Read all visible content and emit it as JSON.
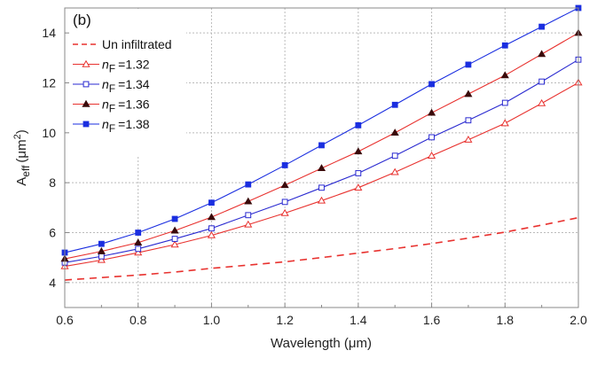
{
  "chart_data": {
    "type": "line",
    "panel_label": "(b)",
    "xlabel": "Wavelength (μm)",
    "ylabel": "A",
    "ylabel_sub": "eff",
    "ylabel_unit": "(μm",
    "ylabel_unit_sup": "2",
    "ylabel_unit_close": ")",
    "xlim": [
      0.6,
      2.0
    ],
    "ylim": [
      3,
      15
    ],
    "xticks": [
      "0.6",
      "0.8",
      "1.0",
      "1.2",
      "1.4",
      "1.6",
      "1.8",
      "2.0"
    ],
    "yticks": [
      "4",
      "6",
      "8",
      "10",
      "12",
      "14"
    ],
    "grid": true,
    "legend_position": "top-left",
    "x": [
      0.6,
      0.7,
      0.8,
      0.9,
      1.0,
      1.1,
      1.2,
      1.3,
      1.4,
      1.5,
      1.6,
      1.7,
      1.8,
      1.9,
      2.0
    ],
    "series": [
      {
        "name": "Un infiltrated",
        "legend_prefix": "",
        "legend_sub": "",
        "color": "#e8322f",
        "dash": true,
        "marker": "none",
        "values": [
          4.1,
          4.2,
          4.3,
          4.42,
          4.57,
          4.7,
          4.83,
          5.0,
          5.18,
          5.36,
          5.56,
          5.78,
          6.02,
          6.3,
          6.6
        ]
      },
      {
        "name": "=1.32",
        "legend_prefix": "n",
        "legend_sub": "F",
        "color": "#e8322f",
        "dash": false,
        "marker": "triangle-open",
        "values": [
          4.65,
          4.9,
          5.2,
          5.52,
          5.89,
          6.32,
          6.78,
          7.28,
          7.8,
          8.42,
          9.08,
          9.72,
          10.38,
          11.18,
          12.01
        ]
      },
      {
        "name": "=1.34",
        "legend_prefix": "n",
        "legend_sub": "F",
        "color": "#2a2ad0",
        "dash": false,
        "marker": "square-open",
        "values": [
          4.8,
          5.05,
          5.35,
          5.75,
          6.17,
          6.7,
          7.23,
          7.8,
          8.38,
          9.08,
          9.82,
          10.5,
          11.2,
          12.05,
          12.93
        ]
      },
      {
        "name": "=1.36",
        "legend_prefix": "n",
        "legend_sub": "F",
        "color": "#e8322f",
        "dash": false,
        "marker": "triangle-filled",
        "marker_color": "#3a0a0a",
        "values": [
          4.95,
          5.25,
          5.6,
          6.08,
          6.62,
          7.25,
          7.9,
          8.58,
          9.25,
          10.0,
          10.8,
          11.55,
          12.3,
          13.15,
          14.0
        ]
      },
      {
        "name": "=1.38",
        "legend_prefix": "n",
        "legend_sub": "F",
        "color": "#1a2ee0",
        "dash": false,
        "marker": "square-filled",
        "values": [
          5.2,
          5.55,
          6.0,
          6.55,
          7.2,
          7.93,
          8.7,
          9.5,
          10.3,
          11.12,
          11.95,
          12.73,
          13.5,
          14.25,
          15.0
        ]
      }
    ]
  }
}
